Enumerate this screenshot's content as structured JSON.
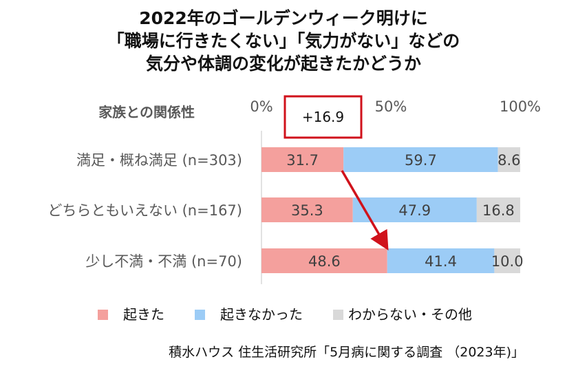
{
  "title_lines": [
    "2022年のゴールデンウィーク明けに",
    "「職場に行きたくない」「気力がない」などの",
    "気分や体調の変化が起きたかどうか"
  ],
  "row_header": "家族との関係性",
  "axis_ticks": [
    "0%",
    "50%",
    "100%"
  ],
  "annotation": "+16.9",
  "source": "積水ハウス 住生活研究所「5月病に関する調査 （2023年)」",
  "colors": {
    "okita": "#f4a09d",
    "okinakatta": "#9cccf6",
    "wakaranai": "#d9d9d9",
    "arrow": "#d0121b",
    "box": "#d0121b"
  },
  "chart_data": {
    "type": "bar",
    "orientation": "horizontal",
    "stacked": "percent",
    "categories": [
      "満足・概ね満足 (n=303)",
      "どちらともいえない (n=167)",
      "少し不満・不満 (n=70)"
    ],
    "series": [
      {
        "name": "起きた",
        "values": [
          31.7,
          35.3,
          48.6
        ]
      },
      {
        "name": "起きなかった",
        "values": [
          59.7,
          47.9,
          41.4
        ]
      },
      {
        "name": "わからない・その他",
        "values": [
          8.6,
          16.8,
          10.0
        ]
      }
    ],
    "xlim": [
      0,
      100
    ],
    "legend_position": "bottom"
  }
}
